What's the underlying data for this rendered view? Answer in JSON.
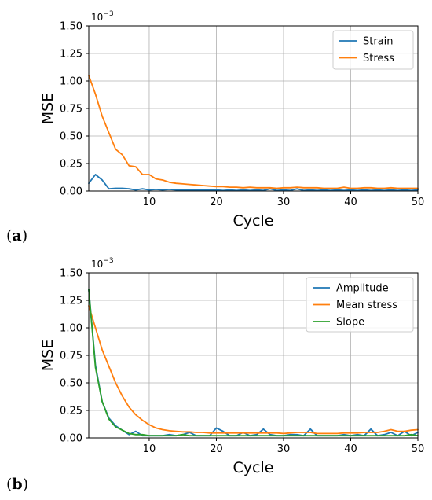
{
  "chart_data": [
    {
      "type": "line",
      "panel_label": "a",
      "xlabel": "Cycle",
      "ylabel": "MSE",
      "y_scale_text": "10",
      "y_scale_exponent": "−3",
      "xlim": [
        1,
        50
      ],
      "ylim": [
        0,
        1.5
      ],
      "xticks": [
        10,
        20,
        30,
        40,
        50
      ],
      "yticks": [
        0.0,
        0.25,
        0.5,
        0.75,
        1.0,
        1.25,
        1.5
      ],
      "ytick_labels": [
        "0.00",
        "0.25",
        "0.50",
        "0.75",
        "1.00",
        "1.25",
        "1.50"
      ],
      "grid": true,
      "legend_position": "top-right",
      "x": [
        1,
        2,
        3,
        4,
        5,
        6,
        7,
        8,
        9,
        10,
        11,
        12,
        13,
        14,
        15,
        16,
        17,
        18,
        19,
        20,
        21,
        22,
        23,
        24,
        25,
        26,
        27,
        28,
        29,
        30,
        31,
        32,
        33,
        34,
        35,
        36,
        37,
        38,
        39,
        40,
        41,
        42,
        43,
        44,
        45,
        46,
        47,
        48,
        49,
        50
      ],
      "series": [
        {
          "name": "Strain",
          "color": "#1f77b4",
          "values": [
            0.07,
            0.15,
            0.1,
            0.02,
            0.025,
            0.025,
            0.02,
            0.01,
            0.02,
            0.01,
            0.015,
            0.01,
            0.015,
            0.01,
            0.01,
            0.01,
            0.01,
            0.01,
            0.01,
            0.01,
            0.005,
            0.01,
            0.005,
            0.01,
            0.005,
            0.01,
            0.005,
            0.02,
            0.005,
            0.01,
            0.005,
            0.02,
            0.005,
            0.01,
            0.005,
            0.01,
            0.005,
            0.01,
            0.005,
            0.01,
            0.005,
            0.01,
            0.005,
            0.01,
            0.005,
            0.01,
            0.005,
            0.01,
            0.005,
            0.01
          ]
        },
        {
          "name": "Stress",
          "color": "#ff7f0e",
          "values": [
            1.05,
            0.88,
            0.68,
            0.53,
            0.38,
            0.33,
            0.23,
            0.22,
            0.15,
            0.15,
            0.11,
            0.1,
            0.08,
            0.07,
            0.065,
            0.06,
            0.055,
            0.05,
            0.045,
            0.04,
            0.04,
            0.035,
            0.035,
            0.03,
            0.035,
            0.03,
            0.03,
            0.03,
            0.025,
            0.03,
            0.03,
            0.035,
            0.03,
            0.03,
            0.03,
            0.025,
            0.025,
            0.025,
            0.035,
            0.025,
            0.025,
            0.03,
            0.03,
            0.025,
            0.025,
            0.03,
            0.025,
            0.025,
            0.025,
            0.025
          ]
        }
      ]
    },
    {
      "type": "line",
      "panel_label": "b",
      "xlabel": "Cycle",
      "ylabel": "MSE",
      "y_scale_text": "10",
      "y_scale_exponent": "−3",
      "xlim": [
        1,
        50
      ],
      "ylim": [
        0,
        1.5
      ],
      "xticks": [
        10,
        20,
        30,
        40,
        50
      ],
      "yticks": [
        0.0,
        0.25,
        0.5,
        0.75,
        1.0,
        1.25,
        1.5
      ],
      "ytick_labels": [
        "0.00",
        "0.25",
        "0.50",
        "0.75",
        "1.00",
        "1.25",
        "1.50"
      ],
      "grid": true,
      "legend_position": "top-right",
      "x": [
        1,
        2,
        3,
        4,
        5,
        6,
        7,
        8,
        9,
        10,
        11,
        12,
        13,
        14,
        15,
        16,
        17,
        18,
        19,
        20,
        21,
        22,
        23,
        24,
        25,
        26,
        27,
        28,
        29,
        30,
        31,
        32,
        33,
        34,
        35,
        36,
        37,
        38,
        39,
        40,
        41,
        42,
        43,
        44,
        45,
        46,
        47,
        48,
        49,
        50
      ],
      "series": [
        {
          "name": "Amplitude",
          "color": "#1f77b4",
          "values": [
            1.35,
            0.66,
            0.33,
            0.18,
            0.11,
            0.07,
            0.03,
            0.06,
            0.02,
            0.02,
            0.02,
            0.02,
            0.03,
            0.02,
            0.03,
            0.05,
            0.02,
            0.02,
            0.02,
            0.09,
            0.06,
            0.02,
            0.02,
            0.05,
            0.02,
            0.03,
            0.08,
            0.03,
            0.02,
            0.02,
            0.03,
            0.03,
            0.02,
            0.08,
            0.02,
            0.02,
            0.02,
            0.02,
            0.03,
            0.02,
            0.03,
            0.02,
            0.08,
            0.02,
            0.03,
            0.05,
            0.02,
            0.06,
            0.02,
            0.05
          ]
        },
        {
          "name": "Mean stress",
          "color": "#ff7f0e",
          "values": [
            1.2,
            1.0,
            0.8,
            0.65,
            0.5,
            0.38,
            0.28,
            0.21,
            0.16,
            0.12,
            0.09,
            0.075,
            0.065,
            0.06,
            0.055,
            0.055,
            0.05,
            0.05,
            0.045,
            0.045,
            0.045,
            0.045,
            0.045,
            0.045,
            0.045,
            0.045,
            0.045,
            0.045,
            0.045,
            0.04,
            0.045,
            0.05,
            0.05,
            0.05,
            0.04,
            0.04,
            0.04,
            0.04,
            0.045,
            0.045,
            0.045,
            0.05,
            0.05,
            0.05,
            0.06,
            0.075,
            0.06,
            0.06,
            0.07,
            0.075
          ]
        },
        {
          "name": "Slope",
          "color": "#2ca02c",
          "values": [
            1.35,
            0.64,
            0.33,
            0.17,
            0.1,
            0.07,
            0.04,
            0.03,
            0.03,
            0.02,
            0.02,
            0.02,
            0.02,
            0.02,
            0.03,
            0.02,
            0.02,
            0.02,
            0.02,
            0.02,
            0.02,
            0.02,
            0.02,
            0.02,
            0.02,
            0.02,
            0.02,
            0.02,
            0.02,
            0.02,
            0.02,
            0.02,
            0.02,
            0.02,
            0.02,
            0.02,
            0.02,
            0.02,
            0.02,
            0.02,
            0.02,
            0.02,
            0.02,
            0.02,
            0.02,
            0.02,
            0.02,
            0.02,
            0.03,
            0.02
          ]
        }
      ]
    }
  ]
}
